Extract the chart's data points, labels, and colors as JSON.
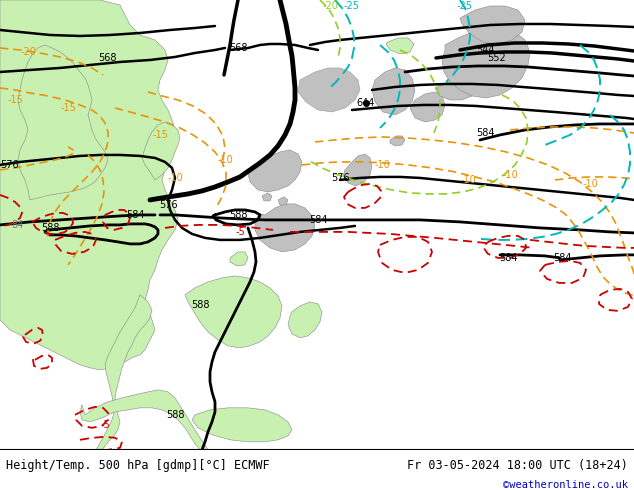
{
  "title_left": "Height/Temp. 500 hPa [gdmp][°C] ECMWF",
  "title_right": "Fr 03-05-2024 18:00 UTC (18+24)",
  "credit": "©weatheronline.co.uk",
  "bg_color": "#e8e8e8",
  "land_green": "#c8f0b0",
  "land_gray": "#c0c0c0",
  "sea_color": "#e0e0e0",
  "black": "#000000",
  "orange": "#e8940a",
  "red": "#cc0000",
  "teal": "#00b8b8",
  "lime": "#90d020",
  "fig_width": 6.34,
  "fig_height": 4.9,
  "dpi": 100
}
